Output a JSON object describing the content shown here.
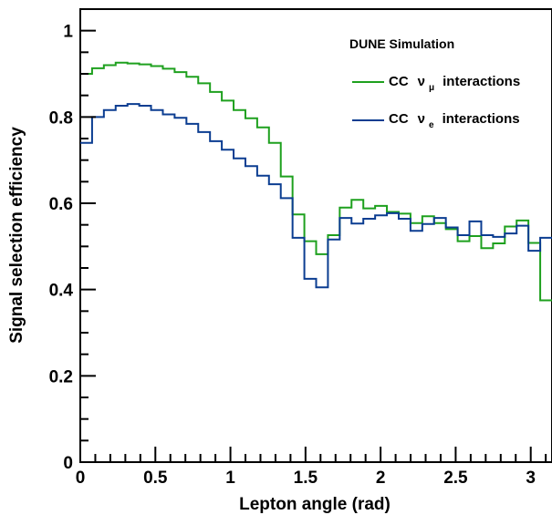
{
  "chart_data": {
    "type": "line",
    "step": true,
    "xlabel": "Lepton angle (rad)",
    "ylabel": "Signal selection efficiency",
    "xlim": [
      0,
      3.14159
    ],
    "ylim": [
      0,
      1.05
    ],
    "x_ticks": [
      0,
      0.5,
      1,
      1.5,
      2,
      2.5,
      3
    ],
    "x_tick_labels": [
      "0",
      "0.5",
      "1",
      "1.5",
      "2",
      "2.5",
      "3"
    ],
    "y_ticks": [
      0,
      0.2,
      0.4,
      0.6,
      0.8,
      1
    ],
    "y_tick_labels": [
      "0",
      "0.2",
      "0.4",
      "0.6",
      "0.8",
      "1"
    ],
    "annotation": "DUNE Simulation",
    "legend_position": "top-right",
    "bin_edges": [
      0,
      0.0785,
      0.157,
      0.2356,
      0.3142,
      0.3927,
      0.4712,
      0.5498,
      0.6283,
      0.7069,
      0.7854,
      0.8639,
      0.9425,
      1.021,
      1.0996,
      1.1781,
      1.2566,
      1.3352,
      1.4137,
      1.4923,
      1.5708,
      1.6493,
      1.7279,
      1.8064,
      1.885,
      1.9635,
      2.042,
      2.1206,
      2.1991,
      2.2777,
      2.3562,
      2.4347,
      2.5133,
      2.5918,
      2.6704,
      2.7489,
      2.8274,
      2.906,
      2.9845,
      3.0631,
      3.1416
    ],
    "series": [
      {
        "name": "CC",
        "name_symbol": "ν",
        "name_sub": "μ",
        "name_suffix": "interactions",
        "color": "#1ea01e",
        "values": [
          0.9,
          0.913,
          0.92,
          0.926,
          0.924,
          0.922,
          0.918,
          0.912,
          0.904,
          0.893,
          0.878,
          0.858,
          0.838,
          0.816,
          0.797,
          0.776,
          0.74,
          0.662,
          0.574,
          0.512,
          0.482,
          0.526,
          0.59,
          0.608,
          0.588,
          0.594,
          0.58,
          0.576,
          0.554,
          0.57,
          0.554,
          0.54,
          0.512,
          0.524,
          0.496,
          0.507,
          0.546,
          0.56,
          0.508,
          0.375
        ]
      },
      {
        "name": "CC",
        "name_symbol": "ν",
        "name_sub": "e",
        "name_suffix": "interactions",
        "color": "#0b3d91",
        "values": [
          0.74,
          0.8,
          0.816,
          0.826,
          0.83,
          0.826,
          0.816,
          0.806,
          0.798,
          0.784,
          0.765,
          0.744,
          0.724,
          0.704,
          0.686,
          0.664,
          0.644,
          0.612,
          0.52,
          0.425,
          0.405,
          0.516,
          0.566,
          0.553,
          0.564,
          0.572,
          0.577,
          0.564,
          0.536,
          0.552,
          0.566,
          0.544,
          0.526,
          0.558,
          0.526,
          0.522,
          0.53,
          0.548,
          0.49,
          0.52
        ]
      }
    ]
  }
}
